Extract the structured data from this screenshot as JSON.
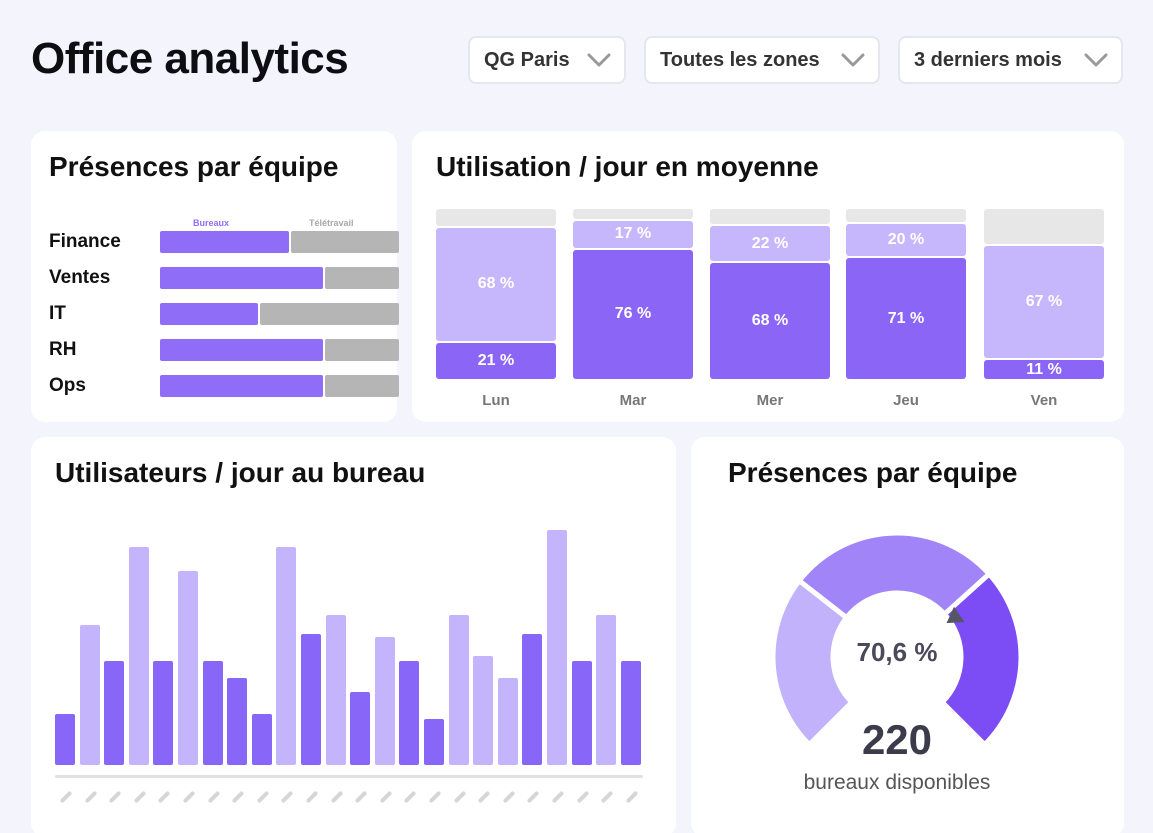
{
  "page": {
    "title": "Office analytics"
  },
  "filters": [
    {
      "label": "QG Paris"
    },
    {
      "label": "Toutes les zones"
    },
    {
      "label": "3 derniers mois"
    }
  ],
  "team_presence": {
    "title": "Présences par équipe",
    "col_office": "Bureaux",
    "col_remote": "Télétravail",
    "colors": {
      "office": "#8f6df7",
      "remote": "#b5b5b5"
    },
    "teams": [
      {
        "name": "Finance",
        "office_share": 0.54
      },
      {
        "name": "Ventes",
        "office_share": 0.68
      },
      {
        "name": "IT",
        "office_share": 0.41
      },
      {
        "name": "RH",
        "office_share": 0.68
      },
      {
        "name": "Ops",
        "office_share": 0.68
      }
    ]
  },
  "usage": {
    "title": "Utilisation / jour en moyenne",
    "colors": {
      "top": "#c6b6fc",
      "low": "#8b66f6",
      "rest": "#e7e7e7"
    },
    "days": [
      {
        "label": "Lun",
        "top": 68,
        "low": 21,
        "top_text": "68 %",
        "low_text": "21 %"
      },
      {
        "label": "Mar",
        "top": 17,
        "low": 76,
        "top_text": "17 %",
        "low_text": "76 %"
      },
      {
        "label": "Mer",
        "top": 22,
        "low": 68,
        "top_text": "22 %",
        "low_text": "68 %"
      },
      {
        "label": "Jeu",
        "top": 20,
        "low": 71,
        "top_text": "20 %",
        "low_text": "71 %"
      },
      {
        "label": "Ven",
        "top": 67,
        "low": 11,
        "top_text": "67 %",
        "low_text": "11 %"
      }
    ]
  },
  "users_per_day": {
    "title": "Utilisateurs / jour au bureau",
    "colors": {
      "dark": "#8866f7",
      "light": "#c4b4fc"
    },
    "bars": [
      {
        "value": 21,
        "tone": "dark"
      },
      {
        "value": 58,
        "tone": "light"
      },
      {
        "value": 43,
        "tone": "dark"
      },
      {
        "value": 90,
        "tone": "light"
      },
      {
        "value": 43,
        "tone": "dark"
      },
      {
        "value": 80,
        "tone": "light"
      },
      {
        "value": 43,
        "tone": "dark"
      },
      {
        "value": 36,
        "tone": "dark"
      },
      {
        "value": 21,
        "tone": "dark"
      },
      {
        "value": 90,
        "tone": "light"
      },
      {
        "value": 54,
        "tone": "dark"
      },
      {
        "value": 62,
        "tone": "light"
      },
      {
        "value": 30,
        "tone": "dark"
      },
      {
        "value": 53,
        "tone": "light"
      },
      {
        "value": 43,
        "tone": "dark"
      },
      {
        "value": 19,
        "tone": "dark"
      },
      {
        "value": 62,
        "tone": "light"
      },
      {
        "value": 45,
        "tone": "light"
      },
      {
        "value": 36,
        "tone": "light"
      },
      {
        "value": 54,
        "tone": "dark"
      },
      {
        "value": 97,
        "tone": "light"
      },
      {
        "value": 43,
        "tone": "dark"
      },
      {
        "value": 62,
        "tone": "light"
      },
      {
        "value": 43,
        "tone": "dark"
      }
    ],
    "ymax": 100
  },
  "gauge": {
    "title": "Présences par équipe",
    "value_text": "70,6 %",
    "value": 70.6,
    "count": "220",
    "count_label": "bureaux disponibles",
    "colors": {
      "light": "#c2b2fb",
      "mid": "#a084f8",
      "dark": "#7c4df5",
      "needle": "#555566"
    }
  }
}
